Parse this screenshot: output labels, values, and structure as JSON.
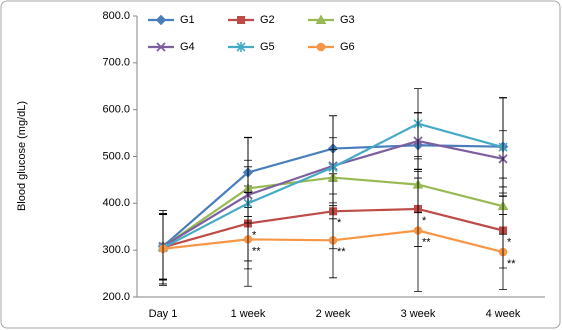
{
  "chart_data": {
    "type": "line",
    "y_label": "Blood glucose (mg/dL)",
    "categories": [
      "Day 1",
      "1 week",
      "2 week",
      "3 week",
      "4 week"
    ],
    "ylim": [
      200,
      800
    ],
    "yticks": [
      {
        "value": 200,
        "label": "200.0"
      },
      {
        "value": 300,
        "label": "300.0"
      },
      {
        "value": 400,
        "label": "400.0"
      },
      {
        "value": 500,
        "label": "500.0"
      },
      {
        "value": 600,
        "label": "600.0"
      },
      {
        "value": 700,
        "label": "700.0"
      },
      {
        "value": 800,
        "label": "800.0"
      }
    ],
    "grid": false,
    "legend": "top-left",
    "series": [
      {
        "name": "G1",
        "color": "#4a7ebb",
        "marker": "diamond",
        "values": [
          308,
          466,
          517,
          524,
          521
        ],
        "errors": [
          70,
          75,
          70,
          70,
          105
        ]
      },
      {
        "name": "G2",
        "color": "#be4b48",
        "marker": "square",
        "values": [
          306,
          357,
          383,
          388,
          342
        ],
        "errors": [
          70,
          80,
          80,
          80,
          80
        ],
        "point_labels": [
          null,
          "*",
          "*",
          "*",
          "*"
        ]
      },
      {
        "name": "G3",
        "color": "#98b954",
        "marker": "triangle",
        "values": [
          307,
          432,
          455,
          440,
          394
        ],
        "errors": [
          70,
          60,
          60,
          60,
          60
        ]
      },
      {
        "name": "G4",
        "color": "#7d5fa0",
        "marker": "x",
        "values": [
          308,
          418,
          480,
          533,
          495
        ],
        "errors": [
          70,
          60,
          60,
          60,
          60
        ]
      },
      {
        "name": "G5",
        "color": "#46aac5",
        "marker": "star",
        "values": [
          305,
          400,
          477,
          570,
          520
        ],
        "errors": [
          80,
          140,
          110,
          75,
          105
        ]
      },
      {
        "name": "G6",
        "color": "#f79646",
        "marker": "circle",
        "values": [
          303,
          323,
          321,
          342,
          296
        ],
        "errors": [
          75,
          100,
          80,
          130,
          80
        ],
        "point_labels": [
          null,
          "**",
          "**",
          "**",
          "**"
        ]
      }
    ]
  }
}
